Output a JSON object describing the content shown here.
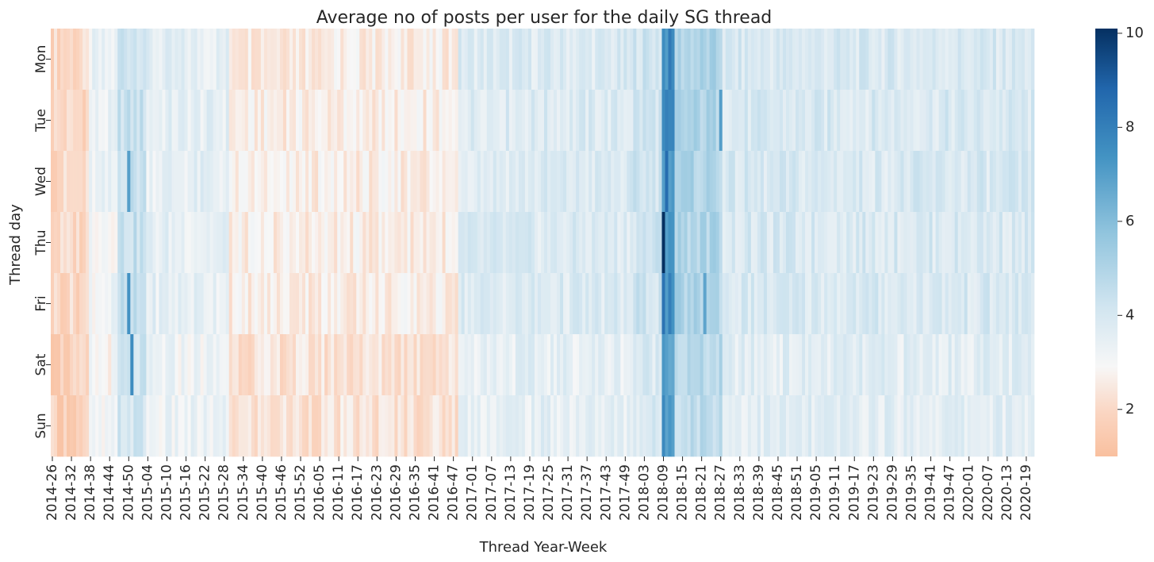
{
  "chart_data": {
    "type": "heatmap",
    "title": "Average no of posts per user for the daily SG thread",
    "xlabel": "Thread Year-Week",
    "ylabel": "Thread day",
    "rows": [
      "Mon",
      "Tue",
      "Wed",
      "Thu",
      "Fri",
      "Sat",
      "Sun"
    ],
    "x_start_year": 2014,
    "x_start_week": 26,
    "x_end_year": 2020,
    "x_end_week": 21,
    "x_tick_labels": [
      "2014-26",
      "2014-32",
      "2014-38",
      "2014-44",
      "2014-50",
      "2015-04",
      "2015-10",
      "2015-16",
      "2015-22",
      "2015-28",
      "2015-34",
      "2015-40",
      "2015-46",
      "2015-52",
      "2016-05",
      "2016-11",
      "2016-17",
      "2016-23",
      "2016-29",
      "2016-35",
      "2016-41",
      "2016-47",
      "2017-01",
      "2017-07",
      "2017-13",
      "2017-19",
      "2017-25",
      "2017-31",
      "2017-37",
      "2017-43",
      "2017-49",
      "2018-03",
      "2018-09",
      "2018-15",
      "2018-21",
      "2018-27",
      "2018-33",
      "2018-39",
      "2018-45",
      "2018-51",
      "2019-05",
      "2019-11",
      "2019-17",
      "2019-23",
      "2019-29",
      "2019-35",
      "2019-41",
      "2019-47",
      "2020-01",
      "2020-07",
      "2020-13",
      "2020-19"
    ],
    "colorbar": {
      "min": 1,
      "max": 10.1,
      "ticks": [
        2,
        4,
        6,
        8,
        10
      ],
      "colormap": "RdBu diverging (orange-red low to dark blue high)"
    },
    "grid": false,
    "segments": [
      {
        "from": "2014-26",
        "to": "2014-38",
        "level": 2.0,
        "note": "low"
      },
      {
        "from": "2014-38",
        "to": "2014-47",
        "level": 3.2
      },
      {
        "from": "2014-47",
        "to": "2015-04",
        "level": 4.4
      },
      {
        "from": "2015-04",
        "to": "2015-30",
        "level": 3.5
      },
      {
        "from": "2015-30",
        "to": "2016-49",
        "level": 2.6
      },
      {
        "from": "2016-49",
        "to": "2017-52",
        "level": 3.8
      },
      {
        "from": "2017-52",
        "to": "2018-09",
        "level": 4.2
      },
      {
        "from": "2018-09",
        "to": "2018-13",
        "level": 7.5
      },
      {
        "from": "2018-13",
        "to": "2018-28",
        "level": 5.0
      },
      {
        "from": "2018-28",
        "to": "2020-21",
        "level": 3.9
      }
    ],
    "highlights": [
      {
        "row": "Thu",
        "week": "2018-09",
        "value": 10.1
      },
      {
        "row": "Wed",
        "week": "2018-10",
        "value": 8.6
      },
      {
        "row": "Fri",
        "week": "2018-09",
        "value": 8.4
      },
      {
        "row": "Mon",
        "week": "2018-11",
        "value": 8.2
      },
      {
        "row": "Tue",
        "week": "2018-11",
        "value": 7.8
      },
      {
        "row": "Sat",
        "week": "2014-51",
        "value": 7.6
      },
      {
        "row": "Fri",
        "week": "2014-50",
        "value": 7.4
      },
      {
        "row": "Wed",
        "week": "2014-50",
        "value": 7.0
      },
      {
        "row": "Tue",
        "week": "2018-27",
        "value": 7.0
      },
      {
        "row": "Fri",
        "week": "2018-22",
        "value": 6.8
      }
    ]
  }
}
